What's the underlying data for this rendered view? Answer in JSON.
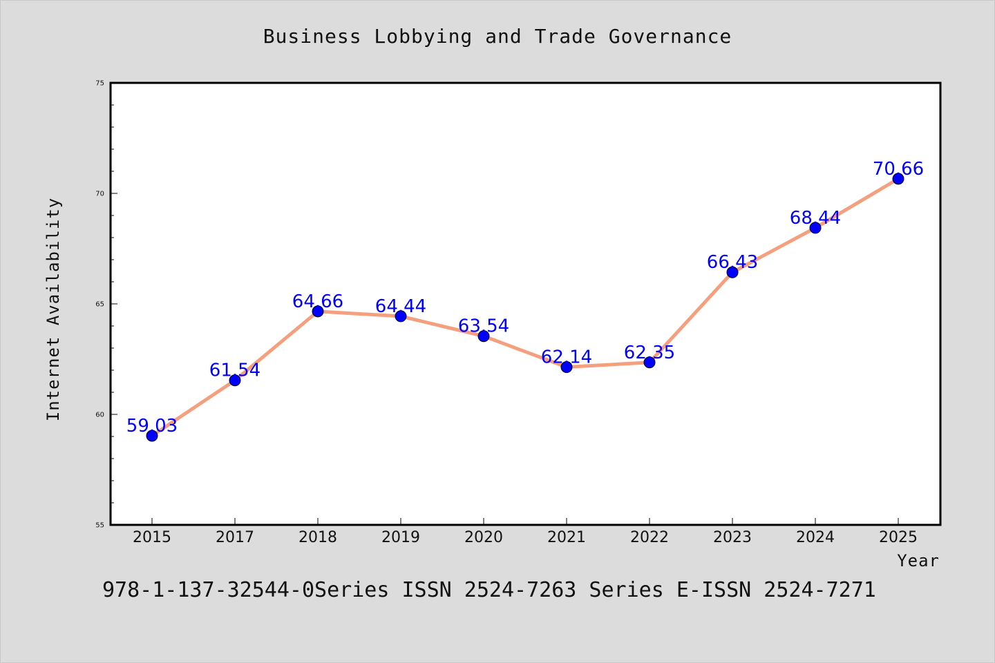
{
  "chart_data": {
    "type": "line",
    "title": "Business Lobbying and Trade Governance",
    "xlabel": "Year",
    "ylabel": "Internet Availability",
    "categories": [
      "2015",
      "2017",
      "2018",
      "2019",
      "2020",
      "2021",
      "2022",
      "2023",
      "2024",
      "2025"
    ],
    "series": [
      {
        "values": [
          59.03,
          61.54,
          64.66,
          64.44,
          63.54,
          62.14,
          62.35,
          66.43,
          68.44,
          70.66
        ],
        "data_labels": [
          "59.03",
          "61.54",
          "64.66",
          "64.44",
          "63.54",
          "62.14",
          "62.35",
          "66.43",
          "68.44",
          "70.66"
        ],
        "line_color": "#f4a07f",
        "marker_color": "#0000ff"
      }
    ],
    "ylim": [
      55,
      75
    ],
    "yticks": [
      55,
      60,
      65,
      70,
      75
    ],
    "ytick_labels": [
      "55",
      "60",
      "65",
      "70",
      "75"
    ],
    "grid": false,
    "legend": "none",
    "plot_background": "#ffffff",
    "page_background": "#dcdcdc"
  },
  "footer": {
    "text": "978-1-137-32544-0Series ISSN 2524-7263 Series E-ISSN 2524-7271"
  }
}
